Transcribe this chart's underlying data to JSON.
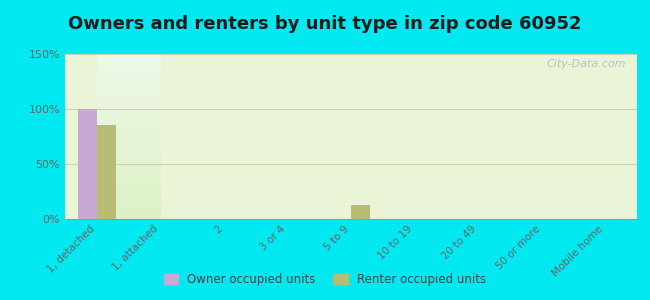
{
  "title": "Owners and renters by unit type in zip code 60952",
  "categories": [
    "1, detached",
    "1, attached",
    "2",
    "3 or 4",
    "5 to 9",
    "10 to 19",
    "20 to 49",
    "50 or more",
    "Mobile home"
  ],
  "owner_values": [
    100,
    0,
    0,
    0,
    0,
    0,
    0,
    0,
    0
  ],
  "renter_values": [
    85,
    0,
    0,
    0,
    13,
    0,
    0,
    0,
    0
  ],
  "owner_color": "#c9a8d4",
  "renter_color": "#b8bb72",
  "ylim": [
    0,
    150
  ],
  "yticks": [
    0,
    50,
    100,
    150
  ],
  "ytick_labels": [
    "0%",
    "50%",
    "100%",
    "150%"
  ],
  "outer_background": "#00e8f0",
  "plot_bg_color": "#eaf5d8",
  "grid_color": "#d0d0b0",
  "title_fontsize": 13,
  "watermark": "City-Data.com",
  "legend_labels": [
    "Owner occupied units",
    "Renter occupied units"
  ],
  "bar_width": 0.3
}
